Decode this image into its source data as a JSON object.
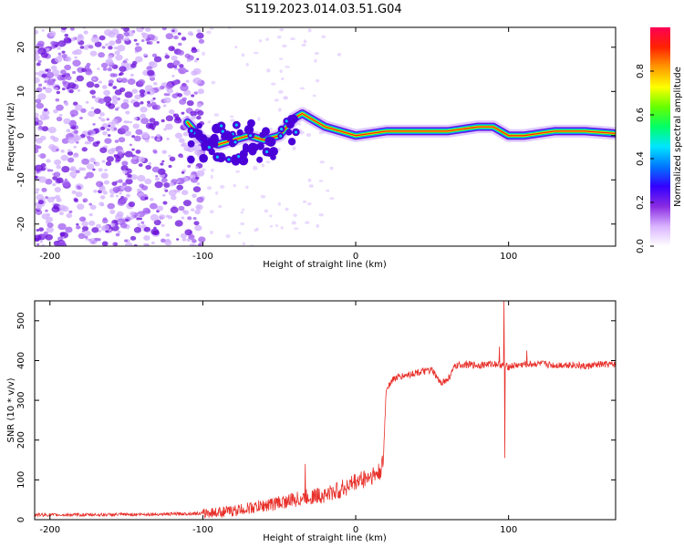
{
  "title": "S119.2023.014.03.51.G04",
  "chart_data": [
    {
      "type": "heatmap",
      "xlabel": "Height of straight line (km)",
      "ylabel": "Frequency (Hz)",
      "xlim": [
        -210,
        170
      ],
      "ylim": [
        -25,
        24.5
      ],
      "xticks": [
        -200,
        -100,
        0,
        100
      ],
      "xtick_labels": [
        "-200",
        "-100",
        "0",
        "100"
      ],
      "yticks": [
        -20,
        -10,
        0,
        10,
        20
      ],
      "ytick_labels": [
        "-20",
        "-10",
        "0",
        "10",
        "20"
      ],
      "colorbar": {
        "label": "Normalized spectral amplitude",
        "range": [
          0,
          1
        ],
        "ticks": [
          0,
          0.2,
          0.4,
          0.6,
          0.8
        ],
        "tick_labels": [
          "0.0",
          "0.2",
          "0.4",
          "0.6",
          "0.8"
        ],
        "colors": [
          "#ffffff",
          "#d9b3ff",
          "#8a2be2",
          "#3300ff",
          "#0077ff",
          "#00e5ff",
          "#00ff66",
          "#66ff00",
          "#ffff00",
          "#ff9900",
          "#ff2200",
          "#ff0055"
        ]
      },
      "ridge": {
        "description_values": "frequency of dominant tone vs height",
        "x": [
          -110,
          -100,
          -90,
          -80,
          -70,
          -60,
          -50,
          -40,
          -35,
          -30,
          -20,
          -10,
          0,
          10,
          20,
          40,
          60,
          80,
          90,
          100,
          110,
          130,
          150,
          170
        ],
        "y": [
          3,
          -1,
          -2,
          -1,
          0,
          -1,
          0,
          4,
          5,
          4,
          2,
          1,
          0,
          0.5,
          1,
          1,
          1,
          2,
          2,
          0,
          0,
          1,
          1,
          0.5
        ]
      },
      "noise_region_x": [
        -210,
        -100
      ]
    },
    {
      "type": "line",
      "xlabel": "Height of straight line (km)",
      "ylabel": "SNR (10 * v/v)",
      "xlim": [
        -210,
        170
      ],
      "ylim": [
        0,
        550
      ],
      "xticks": [
        -200,
        -100,
        0,
        100
      ],
      "xtick_labels": [
        "-200",
        "-100",
        "0",
        "100"
      ],
      "yticks": [
        0,
        100,
        200,
        300,
        400,
        500
      ],
      "ytick_labels": [
        "0",
        "100",
        "200",
        "300",
        "400",
        "500"
      ],
      "series": [
        {
          "name": "SNR",
          "color": "#e8302a",
          "x": [
            -210,
            -180,
            -150,
            -120,
            -100,
            -80,
            -60,
            -40,
            -30,
            -20,
            -10,
            0,
            10,
            15,
            18,
            19,
            20,
            25,
            30,
            40,
            50,
            55,
            60,
            65,
            70,
            80,
            90,
            95,
            97,
            100,
            110,
            120,
            130,
            140,
            150,
            160,
            170
          ],
          "values": [
            12,
            12,
            13,
            14,
            16,
            22,
            35,
            50,
            58,
            62,
            75,
            95,
            110,
            115,
            140,
            240,
            330,
            355,
            360,
            370,
            375,
            345,
            350,
            385,
            390,
            388,
            392,
            390,
            385,
            385,
            390,
            392,
            388,
            390,
            385,
            390,
            390
          ]
        }
      ],
      "spikes": [
        {
          "x": -33,
          "y": 140
        },
        {
          "x": 94,
          "y": 435
        },
        {
          "x": 97,
          "y": 550
        },
        {
          "x": 97.5,
          "y": 155
        },
        {
          "x": 112,
          "y": 425
        }
      ]
    }
  ]
}
